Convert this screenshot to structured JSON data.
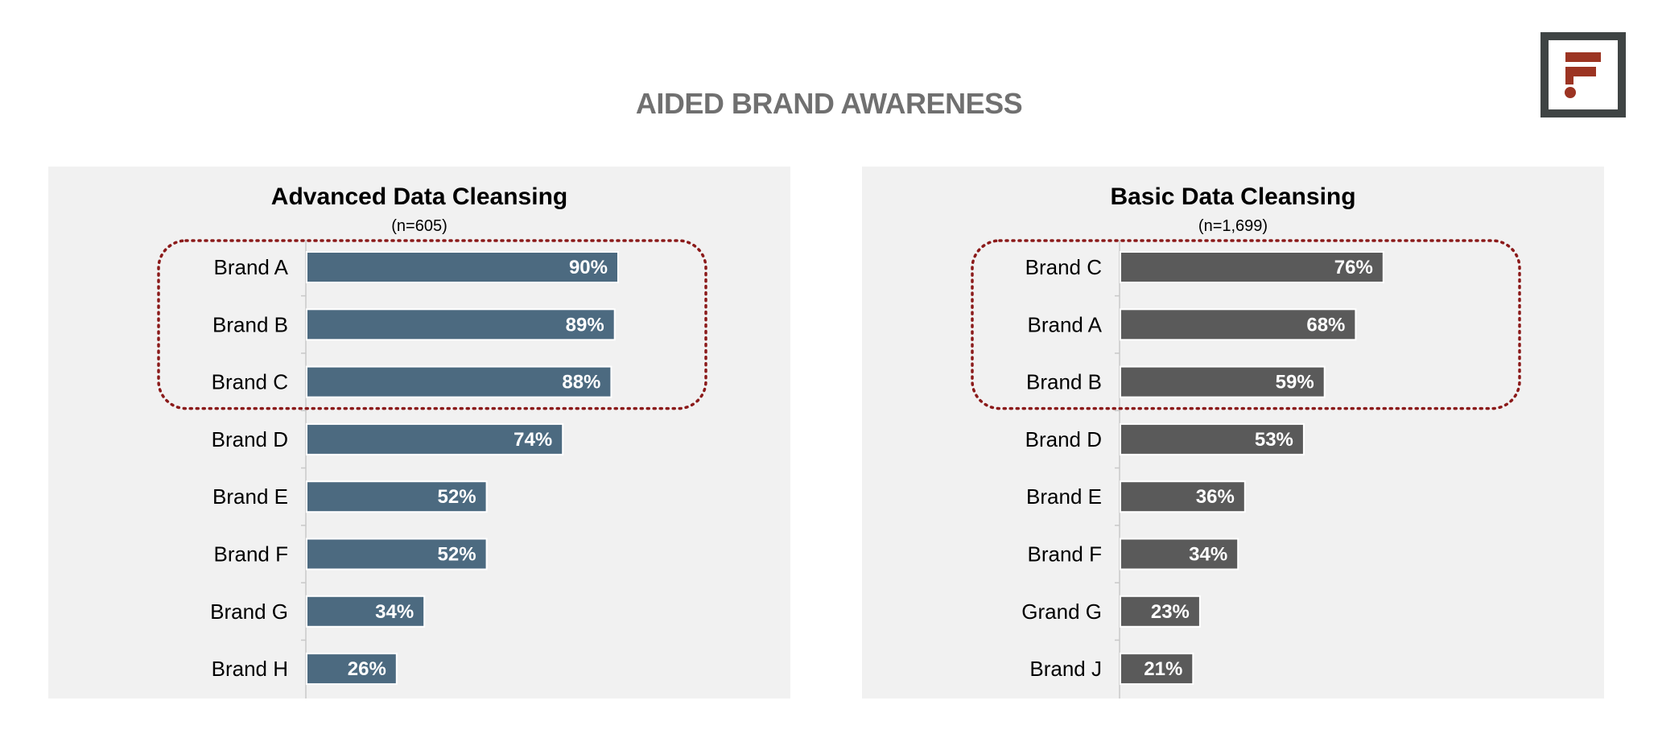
{
  "page": {
    "title": "AIDED BRAND AWARENESS",
    "colors": {
      "title": "#707070",
      "panel_bg": "#f1f1f1",
      "highlight": "#8b1a1a",
      "logo_frame": "#3f4444",
      "logo_mark": "#9c3422"
    },
    "logo_icon": "brand-logo-icon"
  },
  "chart_data": [
    {
      "type": "bar",
      "orientation": "horizontal",
      "title": "Advanced Data Cleansing",
      "subtitle": "(n=605)",
      "categories": [
        "Brand A",
        "Brand B",
        "Brand C",
        "Brand D",
        "Brand E",
        "Brand F",
        "Brand G",
        "Brand H"
      ],
      "values": [
        90,
        89,
        88,
        74,
        52,
        52,
        34,
        26
      ],
      "labels": [
        "90%",
        "89%",
        "88%",
        "74%",
        "52%",
        "52%",
        "34%",
        "26%"
      ],
      "xlim": [
        0,
        100
      ],
      "bar_color": "#4c6a80",
      "highlighted_categories": [
        "Brand A",
        "Brand B",
        "Brand C"
      ]
    },
    {
      "type": "bar",
      "orientation": "horizontal",
      "title": "Basic Data Cleansing",
      "subtitle": "(n=1,699)",
      "categories": [
        "Brand C",
        "Brand A",
        "Brand B",
        "Brand D",
        "Brand E",
        "Brand F",
        "Grand G",
        "Brand J"
      ],
      "values": [
        76,
        68,
        59,
        53,
        36,
        34,
        23,
        21
      ],
      "labels": [
        "76%",
        "68%",
        "59%",
        "53%",
        "36%",
        "34%",
        "23%",
        "21%"
      ],
      "xlim": [
        0,
        100
      ],
      "bar_color": "#5a5a5a",
      "highlighted_categories": [
        "Brand C",
        "Brand A",
        "Brand B"
      ]
    }
  ]
}
